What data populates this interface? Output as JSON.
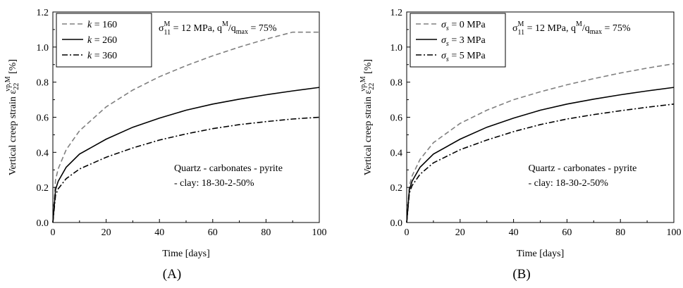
{
  "chart_data": [
    {
      "type": "line",
      "panel_label": "(A)",
      "xlabel": "Time [days]",
      "ylabel_text": "Vertical creep strain ε",
      "ylabel_sub": "22",
      "ylabel_sup": "vp,M",
      "ylabel_unit": " [%]",
      "xlim": [
        0,
        100
      ],
      "ylim": [
        0,
        1.2
      ],
      "x_ticks": [
        "0",
        "20",
        "40",
        "60",
        "80",
        "100"
      ],
      "y_ticks": [
        "0.0",
        "0.2",
        "0.4",
        "0.6",
        "0.8",
        "1.0",
        "1.2"
      ],
      "grid": false,
      "legend_position": "top-left",
      "legend_symbol": "k",
      "stress_annotation": {
        "sigma": "σ",
        "sub": "11",
        "sup": "M",
        "rest": " = 12 MPa,  q",
        "q_sup": "M",
        "q_slash": "/q",
        "q_sub": "max",
        "tail": " = 75%"
      },
      "composition_text": [
        "Quartz - carbonates - pyrite",
        "- clay: 18-30-2-50%"
      ],
      "series": [
        {
          "name": "= 160",
          "style": "dashed",
          "color": "#808080",
          "points": [
            [
              0,
              0
            ],
            [
              1,
              0.243
            ],
            [
              2,
              0.306
            ],
            [
              5,
              0.415
            ],
            [
              10,
              0.523
            ],
            [
              20,
              0.659
            ],
            [
              30,
              0.755
            ],
            [
              40,
              0.831
            ],
            [
              50,
              0.894
            ],
            [
              60,
              0.95
            ],
            [
              70,
              1.0
            ],
            [
              80,
              1.045
            ],
            [
              90,
              1.085
            ],
            [
              100,
              1.085
            ]
          ]
        },
        {
          "name": "= 260",
          "style": "solid",
          "color": "#000000",
          "points": [
            [
              0,
              0
            ],
            [
              1,
              0.187
            ],
            [
              2,
              0.235
            ],
            [
              5,
              0.315
            ],
            [
              10,
              0.39
            ],
            [
              20,
              0.475
            ],
            [
              30,
              0.543
            ],
            [
              40,
              0.595
            ],
            [
              50,
              0.64
            ],
            [
              60,
              0.675
            ],
            [
              70,
              0.703
            ],
            [
              80,
              0.728
            ],
            [
              90,
              0.75
            ],
            [
              100,
              0.77
            ]
          ]
        },
        {
          "name": "= 360",
          "style": "dashdot",
          "color": "#000000",
          "points": [
            [
              0,
              0
            ],
            [
              1,
              0.155
            ],
            [
              2,
              0.192
            ],
            [
              5,
              0.25
            ],
            [
              10,
              0.305
            ],
            [
              20,
              0.372
            ],
            [
              30,
              0.425
            ],
            [
              40,
              0.47
            ],
            [
              50,
              0.505
            ],
            [
              60,
              0.535
            ],
            [
              70,
              0.558
            ],
            [
              80,
              0.575
            ],
            [
              90,
              0.59
            ],
            [
              100,
              0.6
            ]
          ]
        }
      ]
    },
    {
      "type": "line",
      "panel_label": "(B)",
      "xlabel": "Time [days]",
      "ylabel_text": "Vertical creep strain ε",
      "ylabel_sub": "22",
      "ylabel_sup": "vp,M",
      "ylabel_unit": " [%]",
      "xlim": [
        0,
        100
      ],
      "ylim": [
        0,
        1.2
      ],
      "x_ticks": [
        "0",
        "20",
        "40",
        "60",
        "80",
        "100"
      ],
      "y_ticks": [
        "0.0",
        "0.2",
        "0.4",
        "0.6",
        "0.8",
        "1.0",
        "1.2"
      ],
      "grid": false,
      "legend_position": "top-left",
      "legend_symbol": "σ",
      "legend_symbol_sub": "s",
      "stress_annotation": {
        "sigma": "σ",
        "sub": "11",
        "sup": "M",
        "rest": " = 12 MPa,  q",
        "q_sup": "M",
        "q_slash": "/q",
        "q_sub": "max",
        "tail": " = 75%"
      },
      "composition_text": [
        "Quartz - carbonates - pyrite",
        "- clay: 18-30-2-50%"
      ],
      "series": [
        {
          "name": "= 0 MPa",
          "style": "dashed",
          "color": "#808080",
          "points": [
            [
              0,
              0
            ],
            [
              1,
              0.21
            ],
            [
              2,
              0.265
            ],
            [
              5,
              0.36
            ],
            [
              10,
              0.455
            ],
            [
              20,
              0.565
            ],
            [
              30,
              0.64
            ],
            [
              40,
              0.7
            ],
            [
              50,
              0.745
            ],
            [
              60,
              0.785
            ],
            [
              70,
              0.82
            ],
            [
              80,
              0.852
            ],
            [
              90,
              0.88
            ],
            [
              100,
              0.905
            ]
          ]
        },
        {
          "name": "= 3 MPa",
          "style": "solid",
          "color": "#000000",
          "points": [
            [
              0,
              0
            ],
            [
              1,
              0.187
            ],
            [
              2,
              0.235
            ],
            [
              5,
              0.315
            ],
            [
              10,
              0.39
            ],
            [
              20,
              0.475
            ],
            [
              30,
              0.543
            ],
            [
              40,
              0.595
            ],
            [
              50,
              0.64
            ],
            [
              60,
              0.675
            ],
            [
              70,
              0.703
            ],
            [
              80,
              0.728
            ],
            [
              90,
              0.75
            ],
            [
              100,
              0.77
            ]
          ]
        },
        {
          "name": "= 5 MPa",
          "style": "dashdot",
          "color": "#000000",
          "points": [
            [
              0,
              0
            ],
            [
              1,
              0.168
            ],
            [
              2,
              0.21
            ],
            [
              5,
              0.275
            ],
            [
              10,
              0.34
            ],
            [
              20,
              0.415
            ],
            [
              30,
              0.47
            ],
            [
              40,
              0.518
            ],
            [
              50,
              0.558
            ],
            [
              60,
              0.59
            ],
            [
              70,
              0.615
            ],
            [
              80,
              0.637
            ],
            [
              90,
              0.657
            ],
            [
              100,
              0.675
            ]
          ]
        }
      ]
    }
  ]
}
